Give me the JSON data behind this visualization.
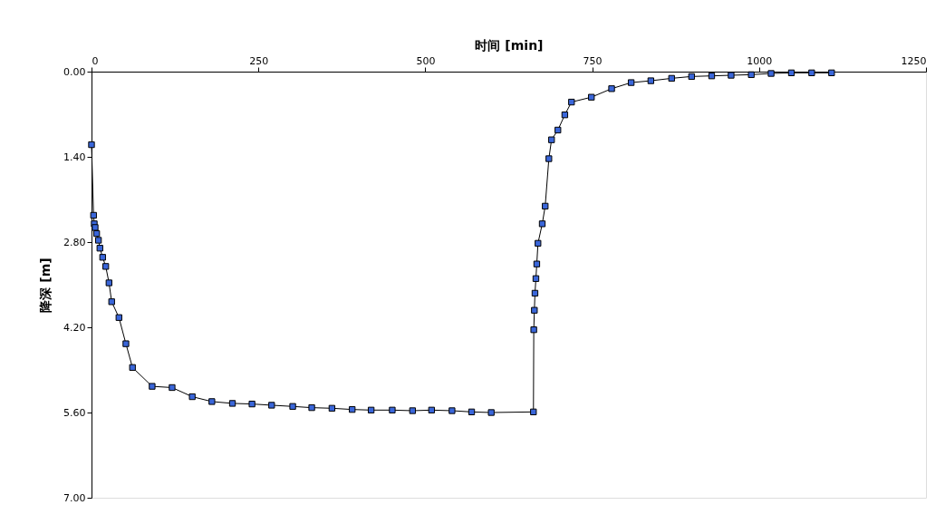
{
  "chart_data": {
    "type": "line",
    "xlabel": "时间 [min]",
    "ylabel": "降深 [m]",
    "x": [
      0,
      3.1,
      4.1,
      5.4,
      7.7,
      10.4,
      12.6,
      16.7,
      21.3,
      26.2,
      30.2,
      41.1,
      51.5,
      61.4,
      90.8,
      120.7,
      150.9,
      180.3,
      211.1,
      240.4,
      269.8,
      301.4,
      329.9,
      360.2,
      390.5,
      418.9,
      450.5,
      480.9,
      509.4,
      540,
      569.4,
      598.8,
      662,
      662.5,
      663.4,
      664.3,
      665.7,
      667,
      668.8,
      675.2,
      679.6,
      685.1,
      689.1,
      698.6,
      709,
      719,
      748.8,
      779.1,
      808.4,
      837.9,
      869,
      898.9,
      929,
      958.1,
      988.3,
      1018,
      1048.4,
      1078.8,
      1108.6
    ],
    "series": [
      {
        "color": "#3a66d9",
        "values": [
          1.2,
          2.36,
          2.5,
          2.56,
          2.66,
          2.77,
          2.9,
          3.05,
          3.2,
          3.47,
          3.78,
          4.04,
          4.47,
          4.86,
          5.17,
          5.19,
          5.34,
          5.42,
          5.45,
          5.46,
          5.48,
          5.5,
          5.52,
          5.53,
          5.55,
          5.56,
          5.56,
          5.57,
          5.56,
          5.57,
          5.59,
          5.6,
          5.59,
          4.24,
          3.92,
          3.64,
          3.4,
          3.16,
          2.82,
          2.5,
          2.21,
          1.43,
          1.12,
          0.96,
          0.71,
          0.5,
          0.42,
          0.28,
          0.18,
          0.15,
          0.11,
          0.08,
          0.07,
          0.06,
          0.05,
          0.03,
          0.02,
          0.02,
          0.02
        ]
      }
    ],
    "xlim": [
      0,
      1250
    ],
    "xticks": [
      0,
      250,
      500,
      750,
      1000,
      1250
    ],
    "ylim": [
      7,
      0
    ],
    "yticks": [
      {
        "value": 0,
        "label": "0.00"
      },
      {
        "value": 1.4,
        "label": "1.40"
      },
      {
        "value": 2.8,
        "label": "2.80"
      },
      {
        "value": 4.2,
        "label": "4.20"
      },
      {
        "value": 5.6,
        "label": "5.60"
      },
      {
        "value": 7,
        "label": "7.00"
      }
    ],
    "marker": "square",
    "line_style": "solid",
    "grid": false
  }
}
